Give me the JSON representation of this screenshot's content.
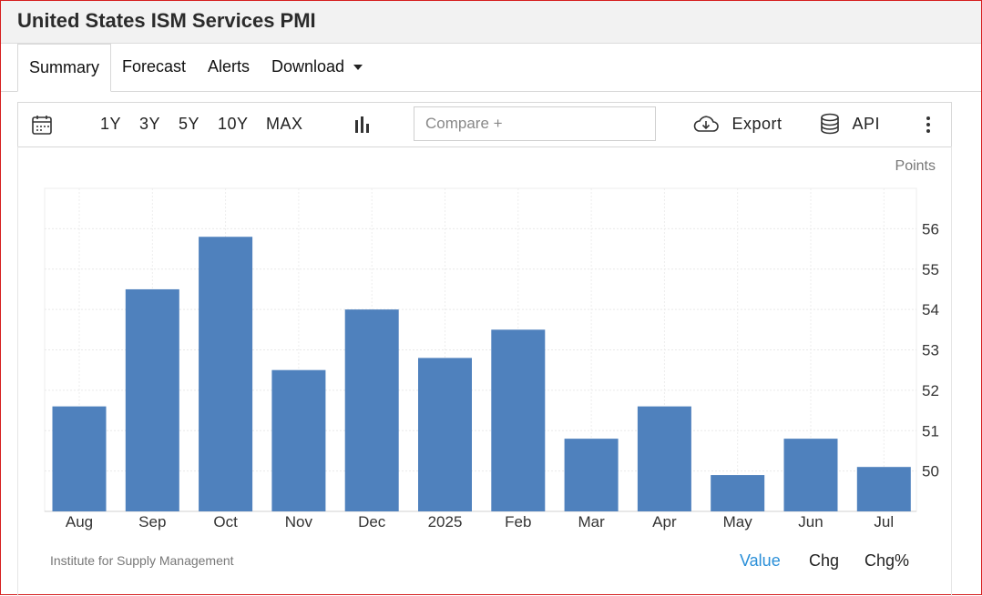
{
  "title": "United States ISM Services PMI",
  "tabs": [
    {
      "label": "Summary"
    },
    {
      "label": "Forecast"
    },
    {
      "label": "Alerts"
    },
    {
      "label": "Download"
    }
  ],
  "toolbar": {
    "ranges": [
      "1Y",
      "3Y",
      "5Y",
      "10Y",
      "MAX"
    ],
    "compare_placeholder": "Compare +",
    "export_label": "Export",
    "api_label": "API"
  },
  "colors": {
    "bar": "#4f81bd",
    "active_tab": "#2a8fd8"
  },
  "value_tabs": [
    {
      "label": "Value"
    },
    {
      "label": "Chg"
    },
    {
      "label": "Chg%"
    }
  ],
  "source": "Institute for Supply Management",
  "chart_data": {
    "type": "bar",
    "unit_label": "Points",
    "categories": [
      "Aug",
      "Sep",
      "Oct",
      "Nov",
      "Dec",
      "2025",
      "Feb",
      "Mar",
      "Apr",
      "May",
      "Jun",
      "Jul"
    ],
    "values": [
      51.6,
      54.5,
      55.8,
      52.5,
      54.0,
      52.8,
      53.5,
      50.8,
      51.6,
      49.9,
      50.8,
      50.1
    ],
    "yticks": [
      50,
      51,
      52,
      53,
      54,
      55,
      56
    ],
    "ylim": [
      49,
      57
    ],
    "y_axis_side": "right",
    "grid": true
  }
}
